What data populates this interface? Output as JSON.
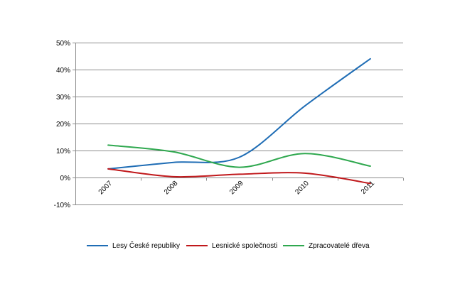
{
  "chart_data": {
    "type": "line",
    "title": "",
    "xlabel": "",
    "ylabel": "",
    "categories": [
      "2007",
      "2008",
      "2009",
      "2010",
      "2011"
    ],
    "ylim": [
      -10,
      50
    ],
    "yticks": [
      -10,
      0,
      10,
      20,
      30,
      40,
      50
    ],
    "ytick_labels": [
      "-10%",
      "0%",
      "10%",
      "20%",
      "30%",
      "40%",
      "50%"
    ],
    "grid": true,
    "legend_position": "bottom",
    "series": [
      {
        "name": "Lesy České republiky",
        "color": "#1f6db5",
        "values": [
          3.2,
          5.6,
          7.5,
          26.5,
          44.0
        ]
      },
      {
        "name": "Lesnické společnosti",
        "color": "#c0181b",
        "values": [
          3.2,
          0.3,
          1.2,
          1.6,
          -2.2
        ]
      },
      {
        "name": "Zpracovatelé dřeva",
        "color": "#2fa84f",
        "values": [
          12.0,
          9.5,
          3.8,
          8.9,
          4.2
        ]
      }
    ]
  }
}
